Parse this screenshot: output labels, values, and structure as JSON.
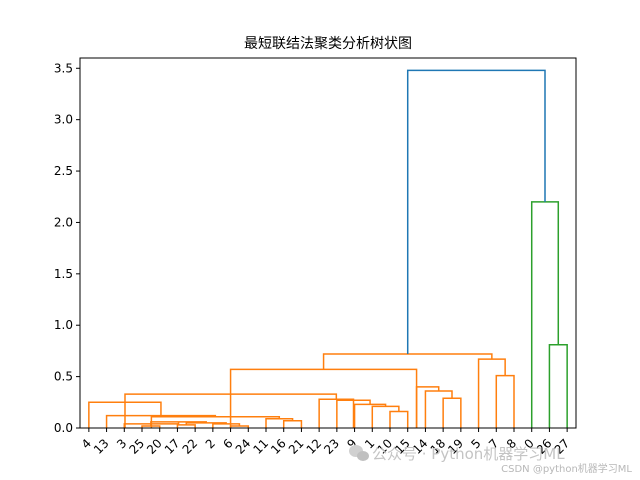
{
  "chart_data": {
    "type": "dendrogram",
    "title": "最短联结法聚类分析树状图",
    "ylim": [
      0,
      3.6
    ],
    "yticks": [
      0.0,
      0.5,
      1.0,
      1.5,
      2.0,
      2.5,
      3.0,
      3.5
    ],
    "ytick_labels": [
      "0.0",
      "0.5",
      "1.0",
      "1.5",
      "2.0",
      "2.5",
      "3.0",
      "3.5"
    ],
    "leaves": [
      "4",
      "13",
      "3",
      "25",
      "20",
      "17",
      "22",
      "2",
      "6",
      "24",
      "11",
      "16",
      "21",
      "12",
      "23",
      "9",
      "1",
      "10",
      "15",
      "14",
      "18",
      "19",
      "5",
      "7",
      "8",
      "0",
      "26",
      "27"
    ],
    "links": [
      {
        "a": 3,
        "b": 4,
        "h": 0.02,
        "color": "#ff7f0e"
      },
      {
        "a": 5,
        "b": 6,
        "h": 0.03,
        "color": "#ff7f0e"
      },
      {
        "a": 8,
        "b": 9,
        "h": 0.02,
        "color": "#ff7f0e"
      },
      {
        "a": 7,
        "b": 8.5,
        "h": 0.04,
        "color": "#ff7f0e"
      },
      {
        "a": 5.5,
        "b": 7.75,
        "h": 0.05,
        "color": "#ff7f0e"
      },
      {
        "a": 3.5,
        "b": 6.625,
        "h": 0.06,
        "color": "#ff7f0e"
      },
      {
        "a": 2,
        "b": 5.0625,
        "h": 0.04,
        "color": "#ff7f0e"
      },
      {
        "a": 11,
        "b": 12,
        "h": 0.07,
        "color": "#ff7f0e"
      },
      {
        "a": 10,
        "b": 11.5,
        "h": 0.09,
        "color": "#ff7f0e"
      },
      {
        "a": 3.53,
        "b": 10.75,
        "h": 0.11,
        "color": "#ff7f0e"
      },
      {
        "a": 1,
        "b": 7.14,
        "h": 0.12,
        "color": "#ff7f0e"
      },
      {
        "a": 0,
        "b": 4.07,
        "h": 0.25,
        "color": "#ff7f0e"
      },
      {
        "a": 17,
        "b": 18,
        "h": 0.16,
        "color": "#ff7f0e"
      },
      {
        "a": 16,
        "b": 17.5,
        "h": 0.21,
        "color": "#ff7f0e"
      },
      {
        "a": 15,
        "b": 16.75,
        "h": 0.23,
        "color": "#ff7f0e"
      },
      {
        "a": 14,
        "b": 15.875,
        "h": 0.27,
        "color": "#ff7f0e"
      },
      {
        "a": 13,
        "b": 14.94,
        "h": 0.28,
        "color": "#ff7f0e"
      },
      {
        "a": 2.04,
        "b": 13.97,
        "h": 0.33,
        "color": "#ff7f0e"
      },
      {
        "a": 20,
        "b": 21,
        "h": 0.29,
        "color": "#ff7f0e"
      },
      {
        "a": 19,
        "b": 20.5,
        "h": 0.36,
        "color": "#ff7f0e"
      },
      {
        "a": 18.5,
        "b": 19.75,
        "h": 0.4,
        "color": "#ff7f0e"
      },
      {
        "a": 8.0,
        "b": 18.5,
        "h": 0.57,
        "color": "#ff7f0e"
      },
      {
        "a": 23,
        "b": 24,
        "h": 0.51,
        "color": "#ff7f0e"
      },
      {
        "a": 22,
        "b": 23.5,
        "h": 0.67,
        "color": "#ff7f0e"
      },
      {
        "a": 13.25,
        "b": 22.75,
        "h": 0.72,
        "color": "#ff7f0e"
      },
      {
        "a": 26,
        "b": 27,
        "h": 0.81,
        "color": "#2ca02c"
      },
      {
        "a": 25,
        "b": 26.5,
        "h": 2.2,
        "color": "#2ca02c"
      },
      {
        "a": 18.0,
        "b": 25.75,
        "h": 3.48,
        "color": "#1f77b4"
      }
    ]
  },
  "watermark": {
    "line1": "公众号 · Python机器学习ML",
    "line2": "CSDN @python机器学习ML"
  }
}
